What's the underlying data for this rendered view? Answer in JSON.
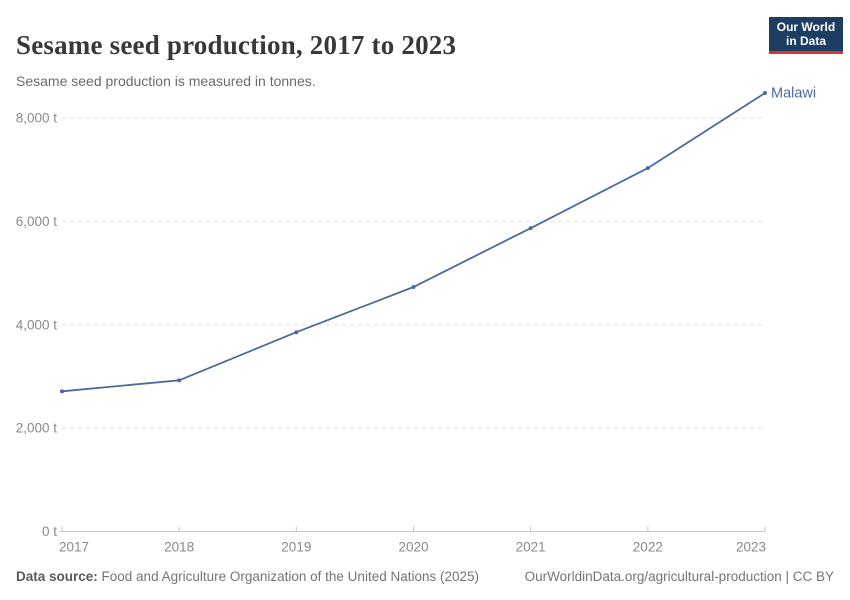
{
  "header": {
    "title": "Sesame seed production, 2017 to 2023",
    "subtitle": "Sesame seed production is measured in tonnes.",
    "logo": {
      "line1": "Our World",
      "line2": "in Data"
    }
  },
  "chart_data": {
    "type": "line",
    "title": "Sesame seed production, 2017 to 2023",
    "xlabel": "",
    "ylabel": "",
    "unit": "tonnes",
    "x": [
      2017,
      2018,
      2019,
      2020,
      2021,
      2022,
      2023
    ],
    "series": [
      {
        "name": "Malawi",
        "color": "#4C6A9C",
        "values": [
          2712,
          2925,
          3856,
          4730,
          5869,
          7031,
          8484
        ]
      }
    ],
    "ylim": [
      0,
      8500
    ],
    "yticks": [
      0,
      2000,
      4000,
      6000,
      8000
    ],
    "ytick_labels": [
      "0 t",
      "2,000 t",
      "4,000 t",
      "6,000 t",
      "8,000 t"
    ],
    "grid": "horizontal-dashed",
    "legend": "end-of-line-label"
  },
  "footer": {
    "source_label": "Data source:",
    "source_text": " Food and Agriculture Organization of the United Nations (2025)",
    "link_text": "OurWorldinData.org/agricultural-production | CC BY"
  },
  "colors": {
    "line": "#4C6A9C",
    "logo_bg": "#1d3d63",
    "logo_red": "#d9352b",
    "gridline": "#e0e0e0",
    "axis": "#c6c6c6"
  }
}
